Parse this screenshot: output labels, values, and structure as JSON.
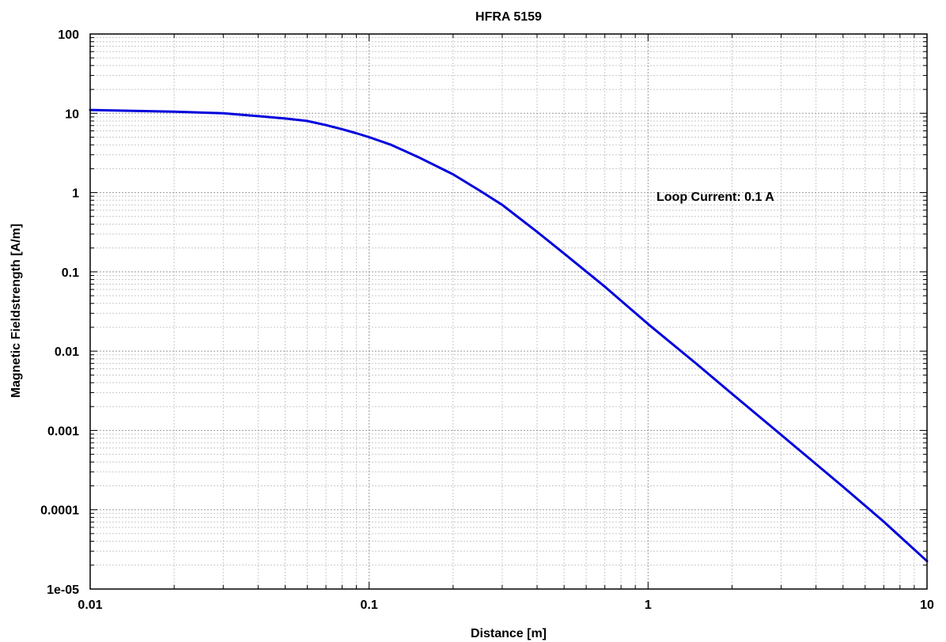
{
  "chart_data": {
    "type": "line",
    "title": "HFRA 5159",
    "xlabel": "Distance [m]",
    "ylabel": "Magnetic Fieldstrength [A/m]",
    "xscale": "log",
    "yscale": "log",
    "xlim": [
      0.01,
      10
    ],
    "ylim": [
      1e-05,
      100
    ],
    "grid": true,
    "x_tick_labels": [
      "0.01",
      "0.1",
      "1",
      "10"
    ],
    "y_tick_labels": [
      "1e-05",
      "0.0001",
      "0.001",
      "0.01",
      "0.1",
      "1",
      "10",
      "100"
    ],
    "annotation": "Loop Current: 0.1 A",
    "series": [
      {
        "color": "#0000dd",
        "x": [
          0.01,
          0.02,
          0.03,
          0.04,
          0.05,
          0.06,
          0.07,
          0.08,
          0.09,
          0.1,
          0.12,
          0.15,
          0.2,
          0.25,
          0.3,
          0.4,
          0.5,
          0.7,
          1,
          1.5,
          2,
          3,
          5,
          7,
          10
        ],
        "y": [
          11,
          10.5,
          10,
          9.2,
          8.6,
          8,
          7.1,
          6.3,
          5.6,
          5,
          4,
          2.8,
          1.7,
          1.05,
          0.7,
          0.32,
          0.17,
          0.065,
          0.022,
          0.0068,
          0.0029,
          0.00088,
          0.000195,
          7.05e-05,
          2.25e-05
        ]
      }
    ]
  }
}
